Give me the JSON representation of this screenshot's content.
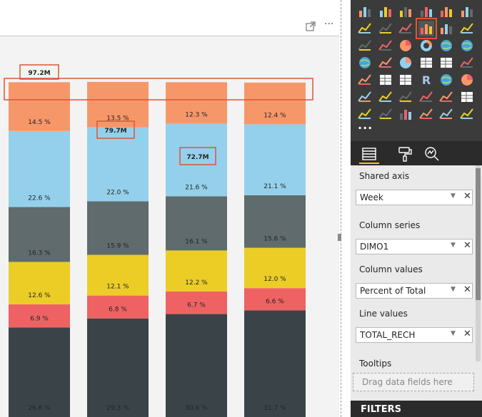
{
  "visual_header": {
    "focus_icon": "focus-mode-icon",
    "more_label": "···"
  },
  "chart_data": {
    "type": "bar",
    "stacked": "100%",
    "categories": [
      "",
      "",
      "",
      ""
    ],
    "series": [
      {
        "color": "#3a4448",
        "values": [
          26.6,
          29.3,
          30.6,
          31.7
        ]
      },
      {
        "color": "#ee6263",
        "values": [
          6.9,
          6.8,
          6.7,
          6.6
        ]
      },
      {
        "color": "#ebcd26",
        "values": [
          12.6,
          12.1,
          12.2,
          12.0
        ]
      },
      {
        "color": "#5f6b6c",
        "values": [
          16.3,
          15.9,
          16.1,
          15.6
        ]
      },
      {
        "color": "#94d0eb",
        "values": [
          22.6,
          22.0,
          21.6,
          21.1
        ]
      },
      {
        "color": "#f6976a",
        "values": [
          14.5,
          13.5,
          12.3,
          12.4
        ]
      }
    ],
    "data_labels": [
      [
        "26.6 %",
        "6.9 %",
        "12.6 %",
        "16.3 %",
        "22.6 %",
        "14.5 %"
      ],
      [
        "29.3 %",
        "6.8 %",
        "12.1 %",
        "15.9 %",
        "22.0 %",
        "13.5 %"
      ],
      [
        "30.6 %",
        "6.7 %",
        "12.2 %",
        "16.1 %",
        "21.6 %",
        "12.3 %"
      ],
      [
        "31.7 %",
        "6.6 %",
        "12.0 %",
        "15.6 %",
        "21.1 %",
        "12.4 %"
      ]
    ],
    "total_labels": [
      "97.2M",
      "79.7M",
      "72.7M",
      ""
    ],
    "highlight_color": "#d9563b"
  },
  "visualizations": {
    "icons": [
      "stacked-bar-chart-icon",
      "stacked-column-chart-icon",
      "clustered-bar-chart-icon",
      "clustered-column-chart-icon",
      "100-stacked-bar-chart-icon",
      "100-stacked-column-chart-icon",
      "line-chart-icon",
      "area-chart-icon",
      "stacked-area-chart-icon",
      "line-and-stacked-column-chart-icon",
      "line-and-clustered-column-chart-icon",
      "ribbon-chart-icon",
      "waterfall-chart-icon",
      "scatter-chart-icon",
      "pie-chart-icon",
      "donut-chart-icon",
      "treemap-icon",
      "map-icon",
      "filled-map-icon",
      "funnel-icon",
      "gauge-icon",
      "card-icon",
      "multi-row-card-icon",
      "kpi-icon",
      "slicer-icon",
      "table-icon",
      "matrix-icon",
      "r-visual-icon",
      "arcgis-map-icon",
      "globe-gauge-icon",
      "stopwatch-icon",
      "line-dot-chart-icon",
      "trend-chart-icon",
      "bullet-chart-icon",
      "sparkline-icon",
      "number-card-icon",
      "tornado-chart-icon",
      "logo-visual-icon",
      "histogram-icon",
      "mekko-chart-icon",
      "quadrant-icon",
      "small-multiples-icon"
    ],
    "selected_icon": "line-and-stacked-column-chart-icon",
    "more_label": "···"
  },
  "pane_tabs": [
    "fields-tab-icon",
    "format-paint-icon",
    "analytics-icon"
  ],
  "wells": {
    "shared_axis": {
      "label": "Shared axis",
      "field": "Week"
    },
    "column_series": {
      "label": "Column series",
      "field": "DIMO1"
    },
    "column_values": {
      "label": "Column values",
      "field": "Percent of Total"
    },
    "line_values": {
      "label": "Line values",
      "field": "TOTAL_RECH"
    },
    "tooltips": {
      "label": "Tooltips",
      "placeholder": "Drag data fields here"
    }
  },
  "filters": {
    "label": "FILTERS"
  },
  "colors": {
    "accent": "#f2c811",
    "pane_dark": "#3b3b3b"
  }
}
